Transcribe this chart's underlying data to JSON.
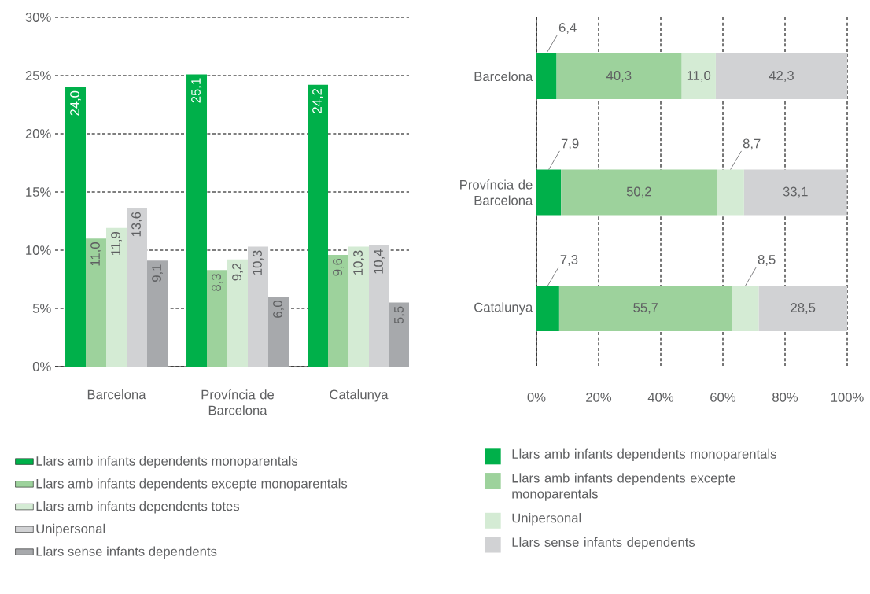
{
  "chart_data": [
    {
      "type": "bar",
      "categories": [
        "Barcelona",
        "Província de Barcelona",
        "Catalunya"
      ],
      "series": [
        {
          "name": "Llars amb infants dependents monoparentals",
          "color": "#00b04a",
          "values": [
            24.0,
            25.1,
            24.2
          ],
          "value_labels": [
            "24,0",
            "25,1",
            "24,2"
          ]
        },
        {
          "name": "Llars amb infants dependents excepte monoparentals",
          "color": "#9dd29c",
          "values": [
            11.0,
            8.3,
            9.6
          ],
          "value_labels": [
            "11,0",
            "8,3",
            "9,6"
          ]
        },
        {
          "name": "Llars amb infants dependents totes",
          "color": "#d4ebd4",
          "values": [
            11.9,
            9.2,
            10.3
          ],
          "value_labels": [
            "11,9",
            "9,2",
            "10,3"
          ]
        },
        {
          "name": "Unipersonal",
          "color": "#d1d2d4",
          "values": [
            13.6,
            10.3,
            10.4
          ],
          "value_labels": [
            "13,6",
            "10,3",
            "10,4"
          ]
        },
        {
          "name": "Llars sense infants dependents",
          "color": "#a7a9ac",
          "values": [
            9.1,
            6.0,
            5.5
          ],
          "value_labels": [
            "9,1",
            "6,0",
            "5,5"
          ]
        }
      ],
      "ylim": [
        0,
        30
      ],
      "yticks": [
        {
          "value": 0,
          "label": "0%"
        },
        {
          "value": 5,
          "label": "5%"
        },
        {
          "value": 10,
          "label": "10%"
        },
        {
          "value": 15,
          "label": "15%"
        },
        {
          "value": 20,
          "label": "20%"
        },
        {
          "value": 25,
          "label": "25%"
        },
        {
          "value": 30,
          "label": "30%"
        }
      ],
      "grid": "y",
      "legend": "bottom",
      "data_labels": true
    },
    {
      "type": "bar",
      "orientation": "horizontal",
      "stacked": true,
      "categories": [
        "Barcelona",
        "Província de Barcelona",
        "Catalunya"
      ],
      "series": [
        {
          "name": "Llars amb infants dependents monoparentals",
          "color": "#00b04a",
          "values": [
            6.4,
            7.9,
            7.3
          ],
          "value_labels": [
            "6,4",
            "7,9",
            "7,3"
          ]
        },
        {
          "name": "Llars amb infants dependents excepte monoparentals",
          "color": "#9dd29c",
          "values": [
            40.3,
            50.2,
            55.7
          ],
          "value_labels": [
            "40,3",
            "50,2",
            "55,7"
          ]
        },
        {
          "name": "Unipersonal",
          "color": "#d4ebd4",
          "values": [
            11.0,
            8.7,
            8.5
          ],
          "value_labels": [
            "11,0",
            "8,7",
            "8,5"
          ]
        },
        {
          "name": "Llars sense infants dependents",
          "color": "#d1d2d4",
          "values": [
            42.3,
            33.1,
            28.5
          ],
          "value_labels": [
            "42,3",
            "33,1",
            "28,5"
          ]
        }
      ],
      "xlim": [
        0,
        100
      ],
      "xticks": [
        {
          "value": 0,
          "label": "0%"
        },
        {
          "value": 20,
          "label": "20%"
        },
        {
          "value": 40,
          "label": "40%"
        },
        {
          "value": 60,
          "label": "60%"
        },
        {
          "value": 80,
          "label": "80%"
        },
        {
          "value": 100,
          "label": "100%"
        }
      ],
      "grid": "x",
      "legend": "bottom",
      "data_labels": true
    }
  ]
}
